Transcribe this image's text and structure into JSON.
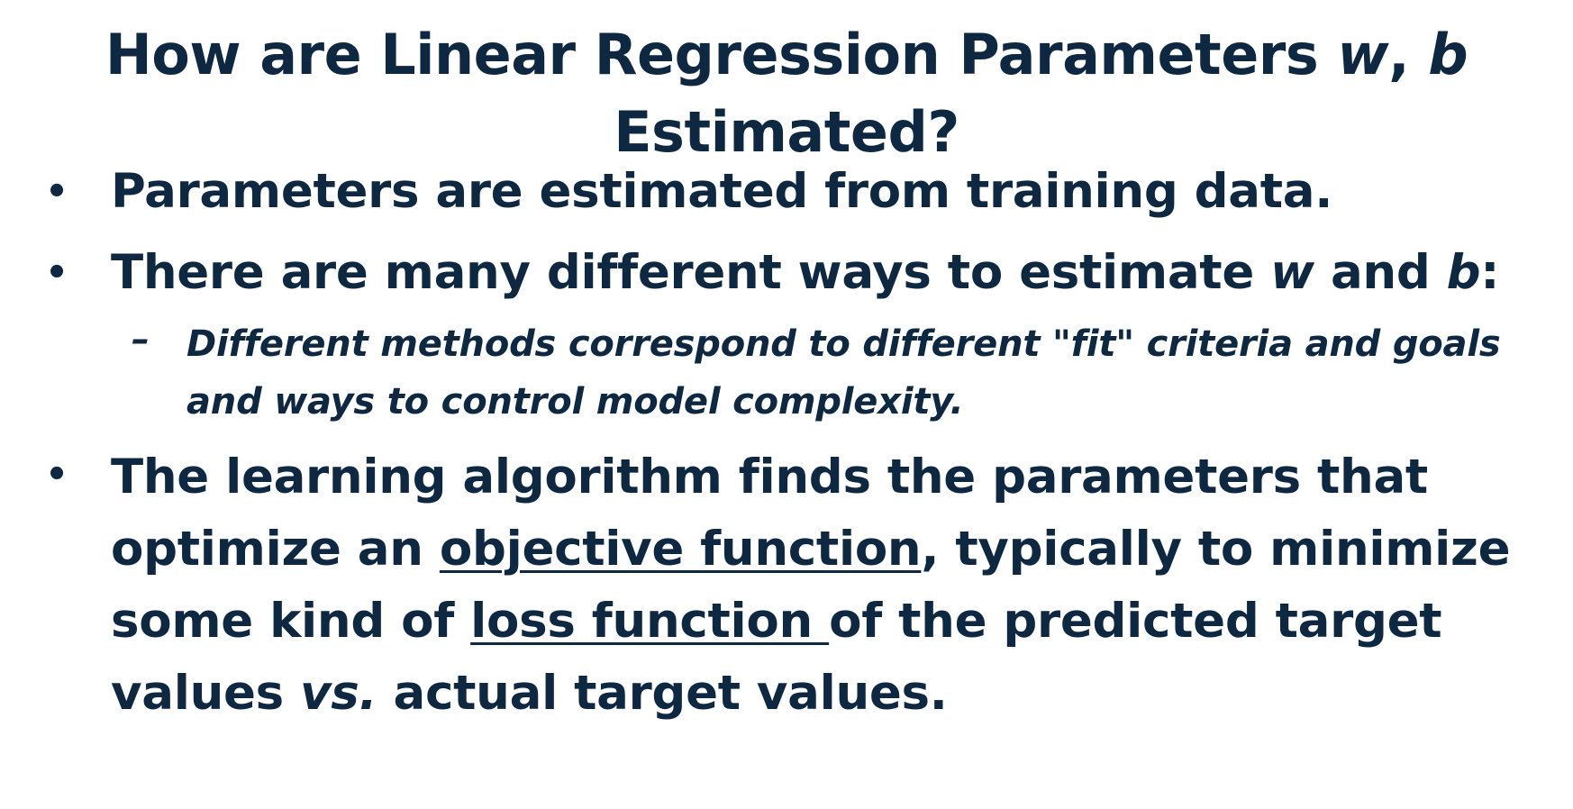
{
  "title": {
    "line1_prefix": "How are Linear Regression Parameters ",
    "w": "w",
    "comma": ", ",
    "b": "b",
    "line2": "Estimated?"
  },
  "bullets": [
    {
      "text": "Parameters are estimated from training data."
    },
    {
      "prefix": "There are many different ways to estimate ",
      "w": "w",
      "middle": " and ",
      "b": "b",
      "suffix": ":",
      "sub": {
        "line1": "Different methods correspond to different \"fit\" criteria and goals",
        "line2": "and ways to control model complexity."
      }
    },
    {
      "line1": "The learning algorithm finds the parameters that",
      "line2_prefix": "optimize an ",
      "objective_function": "objective function",
      "line2_suffix": ", typically to minimize",
      "line3_prefix": "some kind of ",
      "loss_function": "loss function ",
      "line3_suffix": "of the predicted target",
      "line4_prefix": "values ",
      "vs": "vs.",
      "line4_suffix": " actual target values."
    }
  ],
  "bullet_symbol": "•",
  "dash_symbol": "–"
}
